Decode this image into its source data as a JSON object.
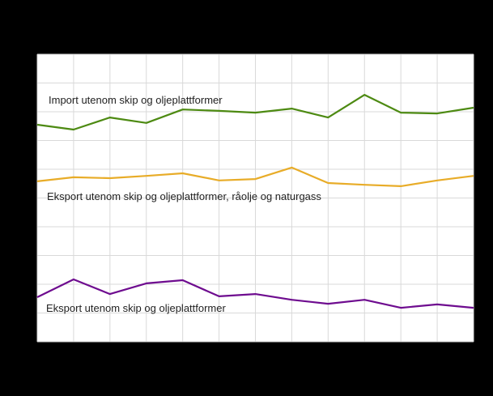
{
  "chart_data": {
    "type": "line",
    "title": "",
    "xlabel": "",
    "ylabel": "",
    "x": [
      "1",
      "2",
      "3",
      "4",
      "5",
      "6",
      "7",
      "8",
      "9",
      "10",
      "11",
      "12",
      "13"
    ],
    "ylim": [
      0,
      100
    ],
    "grid": true,
    "legend_position": "inline labels",
    "series": [
      {
        "name": "Import utenom skip og oljeplattformer",
        "color": "#4d8a12",
        "values": [
          75.5,
          73.8,
          78.0,
          76.1,
          80.8,
          80.3,
          79.7,
          81.1,
          78.0,
          85.9,
          79.7,
          79.4,
          81.4
        ]
      },
      {
        "name": "Eksport utenom skip og oljeplattformer,  råolje  og naturgass",
        "color": "#e8ac28",
        "values": [
          55.8,
          57.2,
          56.9,
          57.7,
          58.6,
          56.1,
          56.6,
          60.6,
          55.2,
          54.6,
          54.1,
          56.1,
          57.7
        ]
      },
      {
        "name": "Eksport utenom skip og oljeplattformer",
        "color": "#6e0c8f",
        "values": [
          15.5,
          21.7,
          16.6,
          20.3,
          21.4,
          15.8,
          16.6,
          14.6,
          13.2,
          14.6,
          11.8,
          13.0,
          11.8
        ]
      }
    ]
  },
  "labels": {
    "import": "Import utenom skip og oljeplattformer",
    "export_ex_oil": "Eksport utenom skip og oljeplattformer,  råolje  og naturgass",
    "export": "Eksport utenom skip og oljeplattformer"
  },
  "colors": {
    "background": "#000000",
    "plot_background": "#ffffff",
    "grid": "#d9d9d9"
  }
}
